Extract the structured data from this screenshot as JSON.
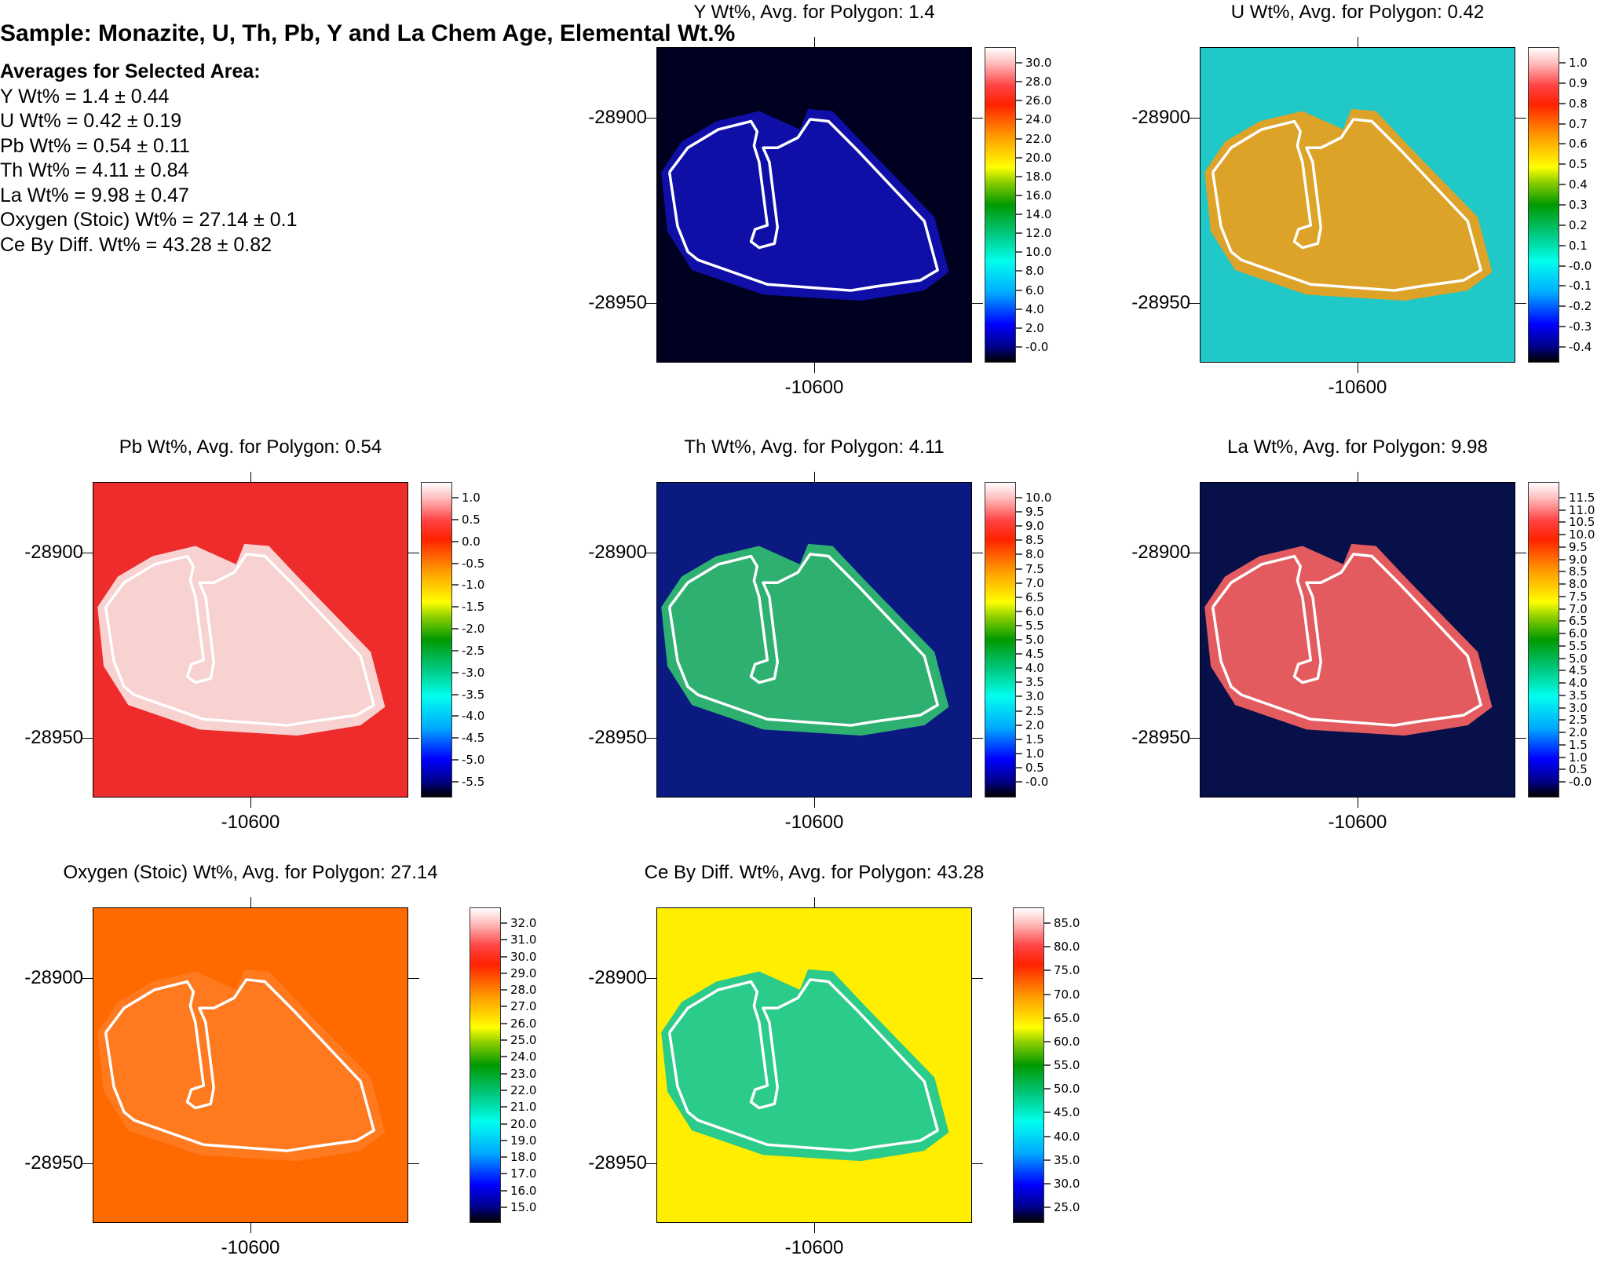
{
  "header": {
    "title": "Sample: Monazite, U, Th, Pb, Y and La Chem Age, Elemental Wt.%",
    "averages_heading": "Averages for Selected Area:",
    "averages": [
      "Y Wt% = 1.4 ± 0.44",
      "U Wt% = 0.42 ± 0.19",
      "Pb Wt% = 0.54 ± 0.11",
      "Th Wt% = 4.11 ± 0.84",
      "La Wt% = 9.98 ± 0.47",
      "Oxygen (Stoic) Wt% = 27.14 ± 0.1",
      "Ce By Diff. Wt% = 43.28 ± 0.82"
    ]
  },
  "chart_data": [
    {
      "type": "heatmap",
      "title": "Y Wt%, Avg. for Polygon: 1.4",
      "polygon_avg": 1.4,
      "y_ticks": [
        "-28900",
        "-28950"
      ],
      "x_ticks": [
        "-10600"
      ],
      "colorbar_ticks": [
        "30.0",
        "28.0",
        "26.0",
        "24.0",
        "22.0",
        "20.0",
        "18.0",
        "16.0",
        "14.0",
        "12.0",
        "10.0",
        "8.0",
        "6.0",
        "4.0",
        "2.0",
        "-0.0"
      ],
      "background_color": "#000020",
      "grain_color": "#1010b0"
    },
    {
      "type": "heatmap",
      "title": "U Wt%, Avg. for Polygon: 0.42",
      "polygon_avg": 0.42,
      "y_ticks": [
        "-28900",
        "-28950"
      ],
      "x_ticks": [
        "-10600"
      ],
      "colorbar_ticks": [
        "1.0",
        "0.9",
        "0.8",
        "0.7",
        "0.6",
        "0.5",
        "0.4",
        "0.3",
        "0.2",
        "0.1",
        "-0.0",
        "-0.1",
        "-0.2",
        "-0.3",
        "-0.4"
      ],
      "background_color": "#20c8c8",
      "grain_color": "#e8a020"
    },
    {
      "type": "heatmap",
      "title": "Pb Wt%, Avg. for Polygon: 0.54",
      "polygon_avg": 0.54,
      "y_ticks": [
        "-28900",
        "-28950"
      ],
      "x_ticks": [
        "-10600"
      ],
      "colorbar_ticks": [
        "1.0",
        "0.5",
        "0.0",
        "-0.5",
        "-1.0",
        "-1.5",
        "-2.0",
        "-2.5",
        "-3.0",
        "-3.5",
        "-4.0",
        "-4.5",
        "-5.0",
        "-5.5"
      ],
      "background_color": "#ee2c2c",
      "grain_color": "#f8dada"
    },
    {
      "type": "heatmap",
      "title": "Th Wt%, Avg. for Polygon: 4.11",
      "polygon_avg": 4.11,
      "y_ticks": [
        "-28900",
        "-28950"
      ],
      "x_ticks": [
        "-10600"
      ],
      "colorbar_ticks": [
        "10.0",
        "9.5",
        "9.0",
        "8.5",
        "8.0",
        "7.5",
        "7.0",
        "6.5",
        "6.0",
        "5.5",
        "5.0",
        "4.5",
        "4.0",
        "3.5",
        "3.0",
        "2.5",
        "2.0",
        "1.5",
        "1.0",
        "0.5",
        "-0.0"
      ],
      "background_color": "#0a1a80",
      "grain_color": "#30b870"
    },
    {
      "type": "heatmap",
      "title": "La Wt%, Avg. for Polygon: 9.98",
      "polygon_avg": 9.98,
      "y_ticks": [
        "-28900",
        "-28950"
      ],
      "x_ticks": [
        "-10600"
      ],
      "colorbar_ticks": [
        "11.5",
        "11.0",
        "10.5",
        "10.0",
        "9.5",
        "9.0",
        "8.5",
        "8.0",
        "7.5",
        "7.0",
        "6.5",
        "6.0",
        "5.5",
        "5.0",
        "4.5",
        "4.0",
        "3.5",
        "3.0",
        "2.5",
        "2.0",
        "1.5",
        "1.0",
        "0.5",
        "-0.0"
      ],
      "background_color": "#08104a",
      "grain_color": "#f06060"
    },
    {
      "type": "heatmap",
      "title": "Oxygen (Stoic) Wt%, Avg. for Polygon: 27.14",
      "polygon_avg": 27.14,
      "y_ticks": [
        "-28900",
        "-28950"
      ],
      "x_ticks": [
        "-10600"
      ],
      "colorbar_ticks": [
        "32.0",
        "31.0",
        "30.0",
        "29.0",
        "28.0",
        "27.0",
        "26.0",
        "25.0",
        "24.0",
        "23.0",
        "22.0",
        "21.0",
        "20.0",
        "19.0",
        "18.0",
        "17.0",
        "16.0",
        "15.0"
      ],
      "background_color": "#ff6a00",
      "grain_color": "#ff7a20"
    },
    {
      "type": "heatmap",
      "title": "Ce By Diff. Wt%, Avg. for Polygon: 43.28",
      "polygon_avg": 43.28,
      "y_ticks": [
        "-28900",
        "-28950"
      ],
      "x_ticks": [
        "-10600"
      ],
      "colorbar_ticks": [
        "85.0",
        "80.0",
        "75.0",
        "70.0",
        "65.0",
        "60.0",
        "55.0",
        "50.0",
        "45.0",
        "40.0",
        "35.0",
        "30.0",
        "25.0"
      ],
      "background_color": "#ffee00",
      "grain_color": "#20c890"
    }
  ]
}
